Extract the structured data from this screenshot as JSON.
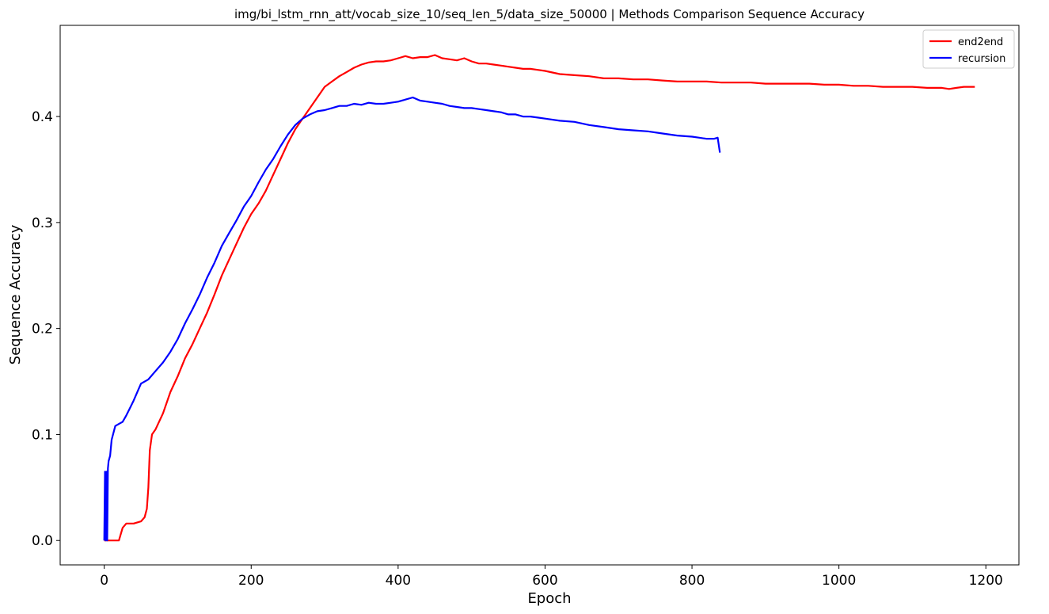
{
  "chart_data": {
    "type": "line",
    "title": "img/bi_lstm_rnn_att/vocab_size_10/seq_len_5/data_size_50000 | Methods Comparison Sequence Accuracy",
    "xlabel": "Epoch",
    "ylabel": "Sequence Accuracy",
    "xlim": [
      -60,
      1245
    ],
    "ylim": [
      -0.023,
      0.486
    ],
    "xticks": [
      0,
      200,
      400,
      600,
      800,
      1000,
      1200
    ],
    "yticks": [
      0.0,
      0.1,
      0.2,
      0.3,
      0.4
    ],
    "xtick_labels": [
      "0",
      "200",
      "400",
      "600",
      "800",
      "1000",
      "1200"
    ],
    "ytick_labels": [
      "0.0",
      "0.1",
      "0.2",
      "0.3",
      "0.4"
    ],
    "grid": false,
    "legend_position": "top-right",
    "series": [
      {
        "name": "end2end",
        "color": "#ff0000",
        "x": [
          0,
          10,
          20,
          25,
          30,
          40,
          50,
          55,
          58,
          60,
          62,
          65,
          70,
          80,
          90,
          100,
          110,
          120,
          130,
          140,
          150,
          160,
          170,
          180,
          190,
          200,
          210,
          220,
          230,
          240,
          250,
          260,
          270,
          280,
          290,
          300,
          310,
          320,
          330,
          340,
          350,
          360,
          370,
          380,
          390,
          400,
          410,
          420,
          430,
          440,
          450,
          460,
          470,
          480,
          490,
          500,
          510,
          520,
          530,
          540,
          550,
          560,
          570,
          580,
          590,
          600,
          620,
          640,
          660,
          680,
          700,
          720,
          740,
          760,
          780,
          800,
          820,
          840,
          860,
          880,
          900,
          920,
          940,
          960,
          980,
          1000,
          1020,
          1040,
          1060,
          1080,
          1100,
          1120,
          1140,
          1150,
          1160,
          1170,
          1185
        ],
        "y": [
          0.0,
          0.0,
          0.0,
          0.012,
          0.016,
          0.016,
          0.018,
          0.022,
          0.03,
          0.05,
          0.085,
          0.1,
          0.105,
          0.12,
          0.14,
          0.155,
          0.172,
          0.185,
          0.2,
          0.215,
          0.232,
          0.25,
          0.265,
          0.28,
          0.295,
          0.308,
          0.318,
          0.33,
          0.345,
          0.36,
          0.375,
          0.388,
          0.398,
          0.408,
          0.418,
          0.428,
          0.433,
          0.438,
          0.442,
          0.446,
          0.449,
          0.451,
          0.452,
          0.452,
          0.453,
          0.455,
          0.457,
          0.455,
          0.456,
          0.456,
          0.458,
          0.455,
          0.454,
          0.453,
          0.455,
          0.452,
          0.45,
          0.45,
          0.449,
          0.448,
          0.447,
          0.446,
          0.445,
          0.445,
          0.444,
          0.443,
          0.44,
          0.439,
          0.438,
          0.436,
          0.436,
          0.435,
          0.435,
          0.434,
          0.433,
          0.433,
          0.433,
          0.432,
          0.432,
          0.432,
          0.431,
          0.431,
          0.431,
          0.431,
          0.43,
          0.43,
          0.429,
          0.429,
          0.428,
          0.428,
          0.428,
          0.427,
          0.427,
          0.426,
          0.427,
          0.428,
          0.428
        ]
      },
      {
        "name": "recursion",
        "color": "#0000ff",
        "x": [
          0,
          1,
          2,
          3,
          4,
          5,
          6,
          8,
          10,
          15,
          20,
          25,
          30,
          35,
          40,
          45,
          50,
          60,
          70,
          80,
          90,
          100,
          110,
          120,
          130,
          140,
          150,
          160,
          170,
          180,
          190,
          200,
          210,
          220,
          230,
          240,
          250,
          260,
          270,
          280,
          290,
          300,
          310,
          320,
          330,
          340,
          350,
          360,
          370,
          380,
          390,
          400,
          410,
          420,
          430,
          440,
          450,
          460,
          470,
          480,
          490,
          500,
          510,
          520,
          530,
          540,
          550,
          560,
          570,
          580,
          590,
          600,
          620,
          640,
          660,
          680,
          700,
          720,
          740,
          760,
          780,
          800,
          810,
          820,
          830,
          835,
          838
        ],
        "y": [
          0.0,
          0.065,
          0.0,
          0.065,
          0.0,
          0.068,
          0.075,
          0.08,
          0.095,
          0.108,
          0.11,
          0.112,
          0.118,
          0.125,
          0.132,
          0.14,
          0.148,
          0.152,
          0.16,
          0.168,
          0.178,
          0.19,
          0.205,
          0.218,
          0.232,
          0.248,
          0.262,
          0.278,
          0.29,
          0.302,
          0.315,
          0.325,
          0.338,
          0.35,
          0.36,
          0.372,
          0.383,
          0.392,
          0.398,
          0.402,
          0.405,
          0.406,
          0.408,
          0.41,
          0.41,
          0.412,
          0.411,
          0.413,
          0.412,
          0.412,
          0.413,
          0.414,
          0.416,
          0.418,
          0.415,
          0.414,
          0.413,
          0.412,
          0.41,
          0.409,
          0.408,
          0.408,
          0.407,
          0.406,
          0.405,
          0.404,
          0.402,
          0.402,
          0.4,
          0.4,
          0.399,
          0.398,
          0.396,
          0.395,
          0.392,
          0.39,
          0.388,
          0.387,
          0.386,
          0.384,
          0.382,
          0.381,
          0.38,
          0.379,
          0.379,
          0.38,
          0.366
        ]
      }
    ]
  }
}
